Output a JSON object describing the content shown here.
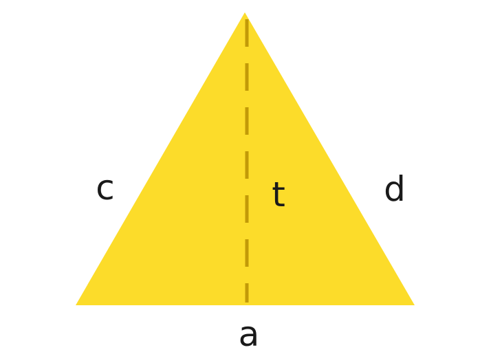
{
  "diagram": {
    "shape": "triangle",
    "fill_color": "#fcdc2a",
    "height_line_color": "#c29a08",
    "height_line_style": "dashed",
    "labels": {
      "left_side": "c",
      "right_side": "d",
      "height": "t",
      "base": "a"
    }
  }
}
